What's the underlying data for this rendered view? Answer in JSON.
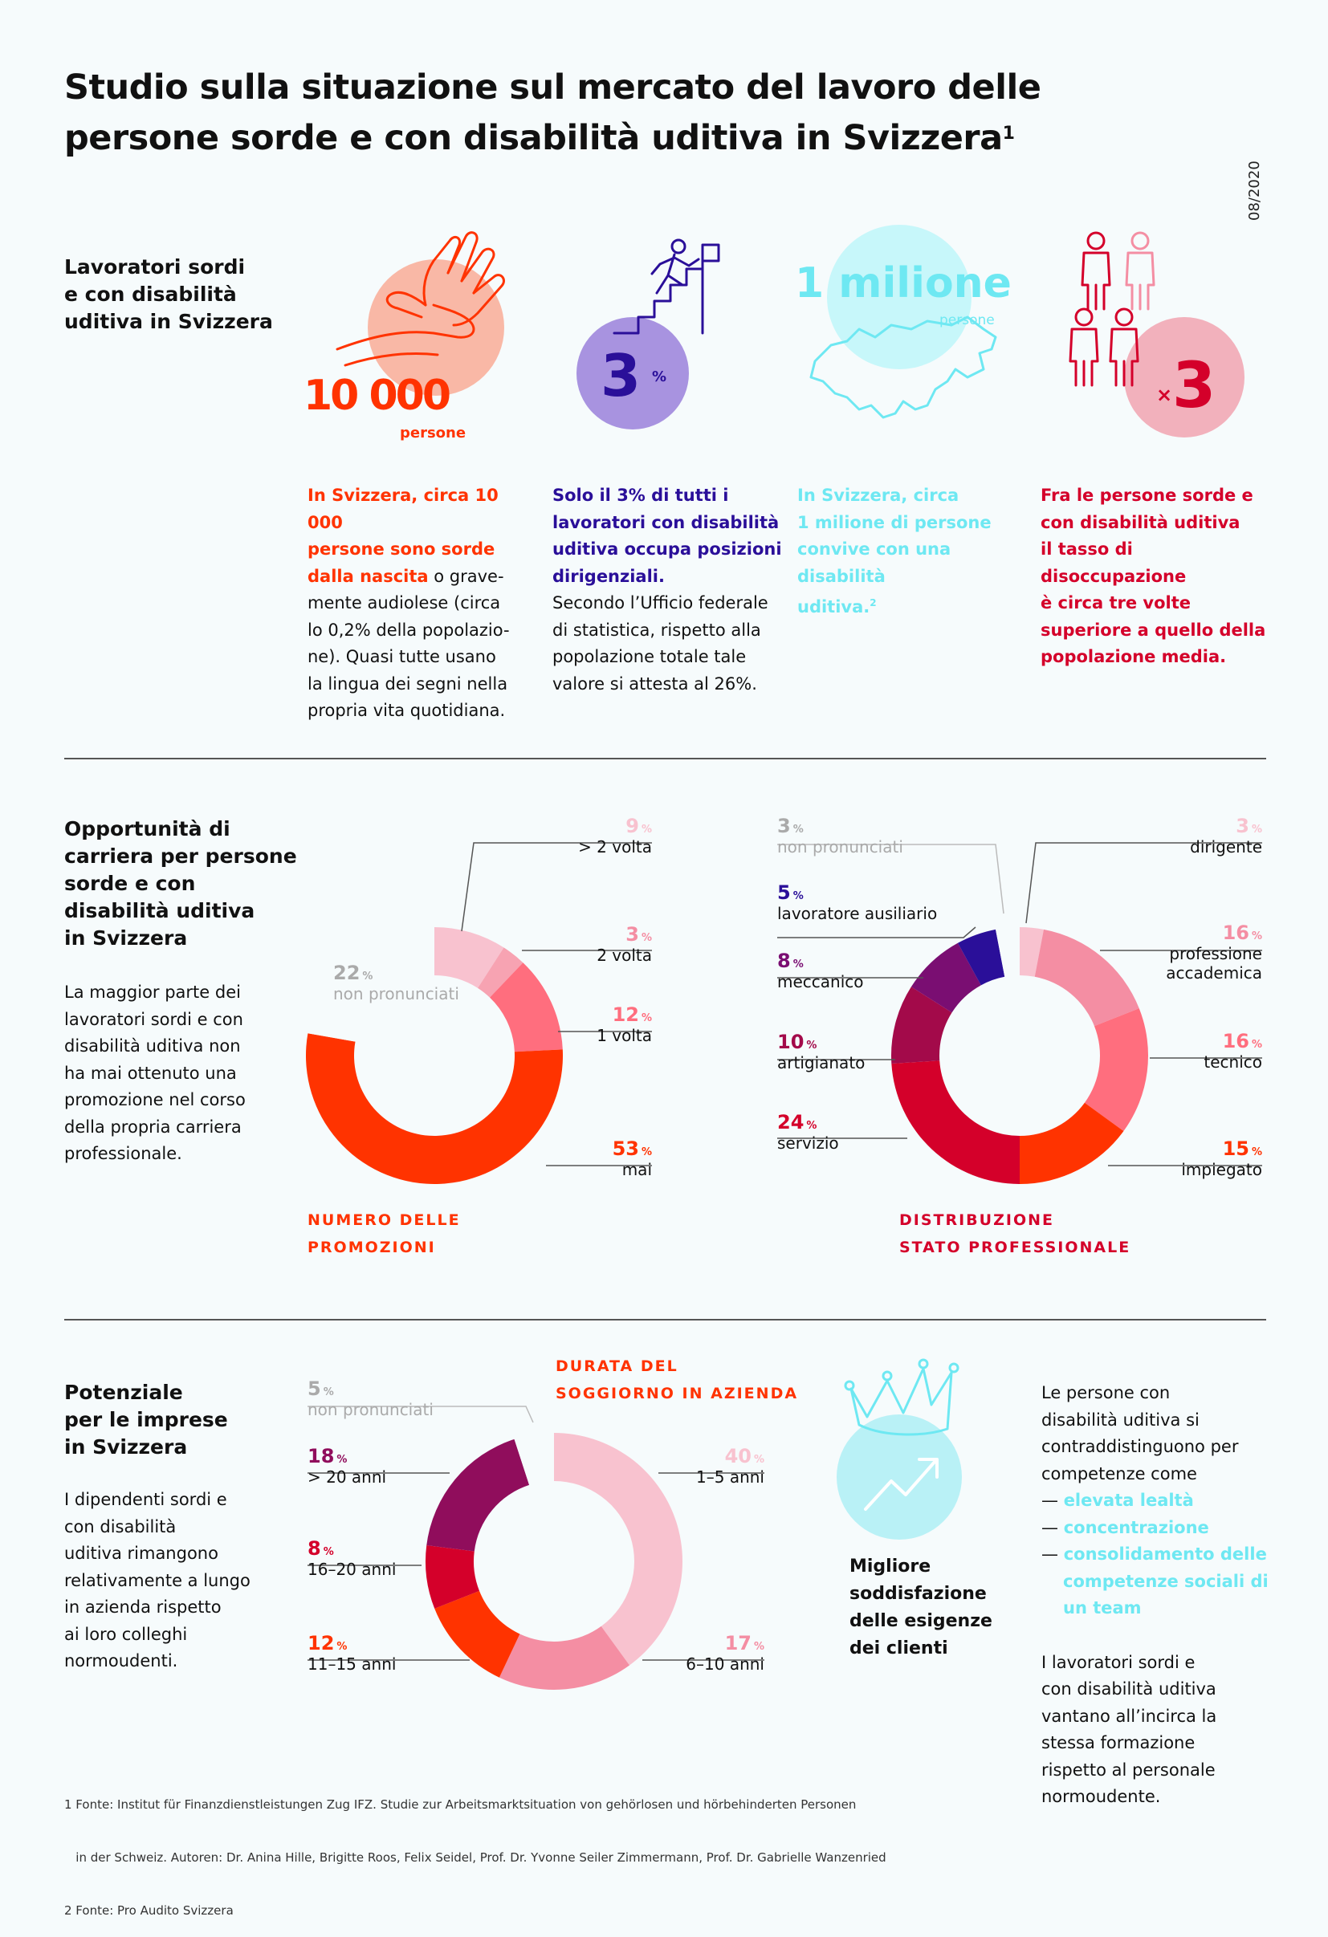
{
  "header": {
    "title_line1": "Studio sulla situazione sul mercato del lavoro delle",
    "title_line2": "persone sorde e con disabilità uditiva in Svizzera",
    "title_sup": "1",
    "date": "08/2020"
  },
  "colors": {
    "orange_red": "#ff3300",
    "purple": "#2a0f99",
    "cyan": "#6ee8f2",
    "crimson": "#d4002a",
    "pink_light": "#f8c2cf",
    "pink_mid": "#f48ea3",
    "salmon": "#ff6e7e",
    "wine": "#b5003a",
    "plum": "#7a0e72",
    "magenta": "#900d5c"
  },
  "section1": {
    "title_lines": [
      "Lavoratori sordi",
      "e con disabilità",
      "uditiva in Svizzera"
    ],
    "stat1": {
      "value": "10 000",
      "unit": "persone",
      "icon": "hand-sign-icon",
      "text_bold": [
        "In Svizzera, circa 10 000",
        "persone sono sorde",
        "dalla nascita"
      ],
      "text_rest": [
        " o grave-",
        "mente audiolese (circa",
        "lo 0,2% della popolazio-",
        "ne). Quasi tutte usano",
        "la lingua dei segni nella",
        "propria vita quotidiana."
      ]
    },
    "stat2": {
      "value": "3",
      "unit": "%",
      "icon": "climbing-stairs-icon",
      "text_bold": [
        "Solo il 3% di tutti i",
        "lavoratori con disabilità",
        "uditiva occupa posizioni",
        "dirigenziali."
      ],
      "text_rest": [
        "Secondo l’Ufficio federale",
        "di statistica, rispetto alla",
        "popolazione totale tale",
        "valore si attesta al 26%."
      ]
    },
    "stat3": {
      "value": "1 milione",
      "unit": "persone",
      "icon": "switzerland-map-icon",
      "text": [
        "In Svizzera, circa",
        "1 milione di persone",
        "convive con una disabilità",
        "uditiva."
      ],
      "text_sup": "2"
    },
    "stat4": {
      "value": "3",
      "prefix": "×",
      "icon": "people-group-icon",
      "text_bold": [
        "Fra le persone sorde e",
        "con disabilità uditiva",
        "il tasso di disoccupazione",
        "è circa tre volte",
        "superiore a quello della",
        "popolazione media."
      ]
    }
  },
  "section2": {
    "title_lines": [
      "Opportunità di",
      "carriera per persone",
      "sorde e con",
      "disabilità uditiva",
      "in Svizzera"
    ],
    "text_lines": [
      "La maggior parte dei",
      "lavoratori sordi e con",
      "disabilità uditiva non",
      "ha mai ottenuto una",
      "promozione nel corso",
      "della propria carriera",
      "professionale."
    ],
    "chart1_caption_lines": [
      "NUMERO DELLE",
      "PROMOZIONI"
    ],
    "chart2_caption_lines": [
      "DISTRIBUZIONE",
      "STATO PROFESSIONALE"
    ]
  },
  "section3": {
    "title_lines": [
      "Potenziale",
      "per le imprese",
      "in Svizzera"
    ],
    "text_lines": [
      "I dipendenti sordi e",
      "con disabilità",
      "uditiva rimangono",
      "relativamente a lungo",
      "in azienda rispetto",
      "ai loro colleghi",
      "normoudenti."
    ],
    "chart_caption_lines": [
      "DURATA DEL",
      "SOGGIORNO IN AZIENDA"
    ],
    "crown_caption_lines": [
      "Migliore",
      "soddisfazione",
      "delle esigenze",
      "dei clienti"
    ],
    "right_intro_lines": [
      "Le persone con",
      "disabilità uditiva si",
      "contraddistinguono per",
      "competenze come"
    ],
    "skills": [
      {
        "dash": "— ",
        "lines": [
          "elevata lealtà"
        ]
      },
      {
        "dash": "— ",
        "lines": [
          "concentrazione"
        ]
      },
      {
        "dash": "— ",
        "lines": [
          "consolidamento delle",
          "competenze sociali di",
          "un team"
        ]
      }
    ],
    "right_outro_lines": [
      "I lavoratori sordi e",
      "con disabilità uditiva",
      "vantano all’incirca la",
      "stessa formazione",
      "rispetto al personale",
      "normoudente."
    ]
  },
  "chart_data": [
    {
      "type": "pie",
      "title": "NUMERO DELLE PROMOZIONI",
      "unit": "%",
      "categories": [
        "> 2 volta",
        "2 volta",
        "1 volta",
        "mai",
        "non pronunciati"
      ],
      "values": [
        9,
        3,
        12,
        53,
        22
      ],
      "colors": [
        "#f8c2cf",
        "#f7a3b2",
        "#ff6e7e",
        "#ff3300",
        "#f6fbfc"
      ]
    },
    {
      "type": "pie",
      "title": "DISTRIBUZIONE STATO PROFESSIONALE",
      "unit": "%",
      "categories": [
        "dirigente",
        "professione accademica",
        "tecnico",
        "impiegato",
        "servizio",
        "artigianato",
        "meccanico",
        "lavoratore ausiliario",
        "non pronunciati"
      ],
      "values": [
        3,
        16,
        16,
        15,
        24,
        10,
        8,
        5,
        3
      ],
      "colors": [
        "#f8c2cf",
        "#f48ea3",
        "#ff6e7e",
        "#ff3300",
        "#d4002a",
        "#a30a4a",
        "#7a0e72",
        "#2a0f99",
        "#f6fbfc"
      ]
    },
    {
      "type": "pie",
      "title": "DURATA DEL SOGGIORNO IN AZIENDA",
      "unit": "%",
      "categories": [
        "1–5 anni",
        "6–10 anni",
        "11–15 anni",
        "16–20 anni",
        "> 20 anni",
        "non pronunciati"
      ],
      "values": [
        40,
        17,
        12,
        8,
        18,
        5
      ],
      "colors": [
        "#f8c2cf",
        "#f48ea3",
        "#ff3300",
        "#d4002a",
        "#900d5c",
        "#f6fbfc"
      ]
    }
  ],
  "labels": {
    "c1": [
      {
        "value": "9",
        "unit": "%",
        "text": "> 2 volta",
        "color": "#f8c2cf"
      },
      {
        "value": "3",
        "unit": "%",
        "text": "2 volta",
        "color": "#f48ea3"
      },
      {
        "value": "12",
        "unit": "%",
        "text": "1 volta",
        "color": "#ff6e7e"
      },
      {
        "value": "53",
        "unit": "%",
        "text": "mai",
        "color": "#ff3300"
      },
      {
        "value": "22",
        "unit": "%",
        "text": "non pronunciati",
        "color": "#aaaaaa"
      }
    ],
    "c2": [
      {
        "value": "3",
        "unit": "%",
        "text": "non pronunciati",
        "color": "#aaaaaa"
      },
      {
        "value": "5",
        "unit": "%",
        "text": "lavoratore ausiliario",
        "color": "#2a0f99"
      },
      {
        "value": "8",
        "unit": "%",
        "text": "meccanico",
        "color": "#7a0e72"
      },
      {
        "value": "10",
        "unit": "%",
        "text": "artigianato",
        "color": "#a30a4a"
      },
      {
        "value": "24",
        "unit": "%",
        "text": "servizio",
        "color": "#d4002a"
      },
      {
        "value": "3",
        "unit": "%",
        "text": "dirigente",
        "color": "#f8c2cf"
      },
      {
        "value": "16",
        "unit": "%",
        "text": "professione",
        "text2": "accademica",
        "color": "#f48ea3"
      },
      {
        "value": "16",
        "unit": "%",
        "text": "tecnico",
        "color": "#ff6e7e"
      },
      {
        "value": "15",
        "unit": "%",
        "text": "impiegato",
        "color": "#ff3300"
      }
    ],
    "c3": [
      {
        "value": "5",
        "unit": "%",
        "text": "non pronunciati",
        "color": "#aaaaaa"
      },
      {
        "value": "18",
        "unit": "%",
        "text": "> 20 anni",
        "color": "#900d5c"
      },
      {
        "value": "8",
        "unit": "%",
        "text": "16–20 anni",
        "color": "#d4002a"
      },
      {
        "value": "12",
        "unit": "%",
        "text": "11–15 anni",
        "color": "#ff3300"
      },
      {
        "value": "40",
        "unit": "%",
        "text": "1–5 anni",
        "color": "#f8c2cf"
      },
      {
        "value": "17",
        "unit": "%",
        "text": "6–10 anni",
        "color": "#f48ea3"
      }
    ]
  },
  "footnotes": [
    "1 Fonte: Institut für Finanzdienstleistungen Zug IFZ. Studie zur Arbeitsmarktsituation von gehörlosen und hörbehinderten Personen",
    "   in der Schweiz. Autoren: Dr. Anina Hille, Brigitte Roos, Felix Seidel, Prof. Dr. Yvonne Seiler Zimmermann, Prof. Dr. Gabrielle Wanzenried",
    "2 Fonte: Pro Audito Svizzera"
  ]
}
